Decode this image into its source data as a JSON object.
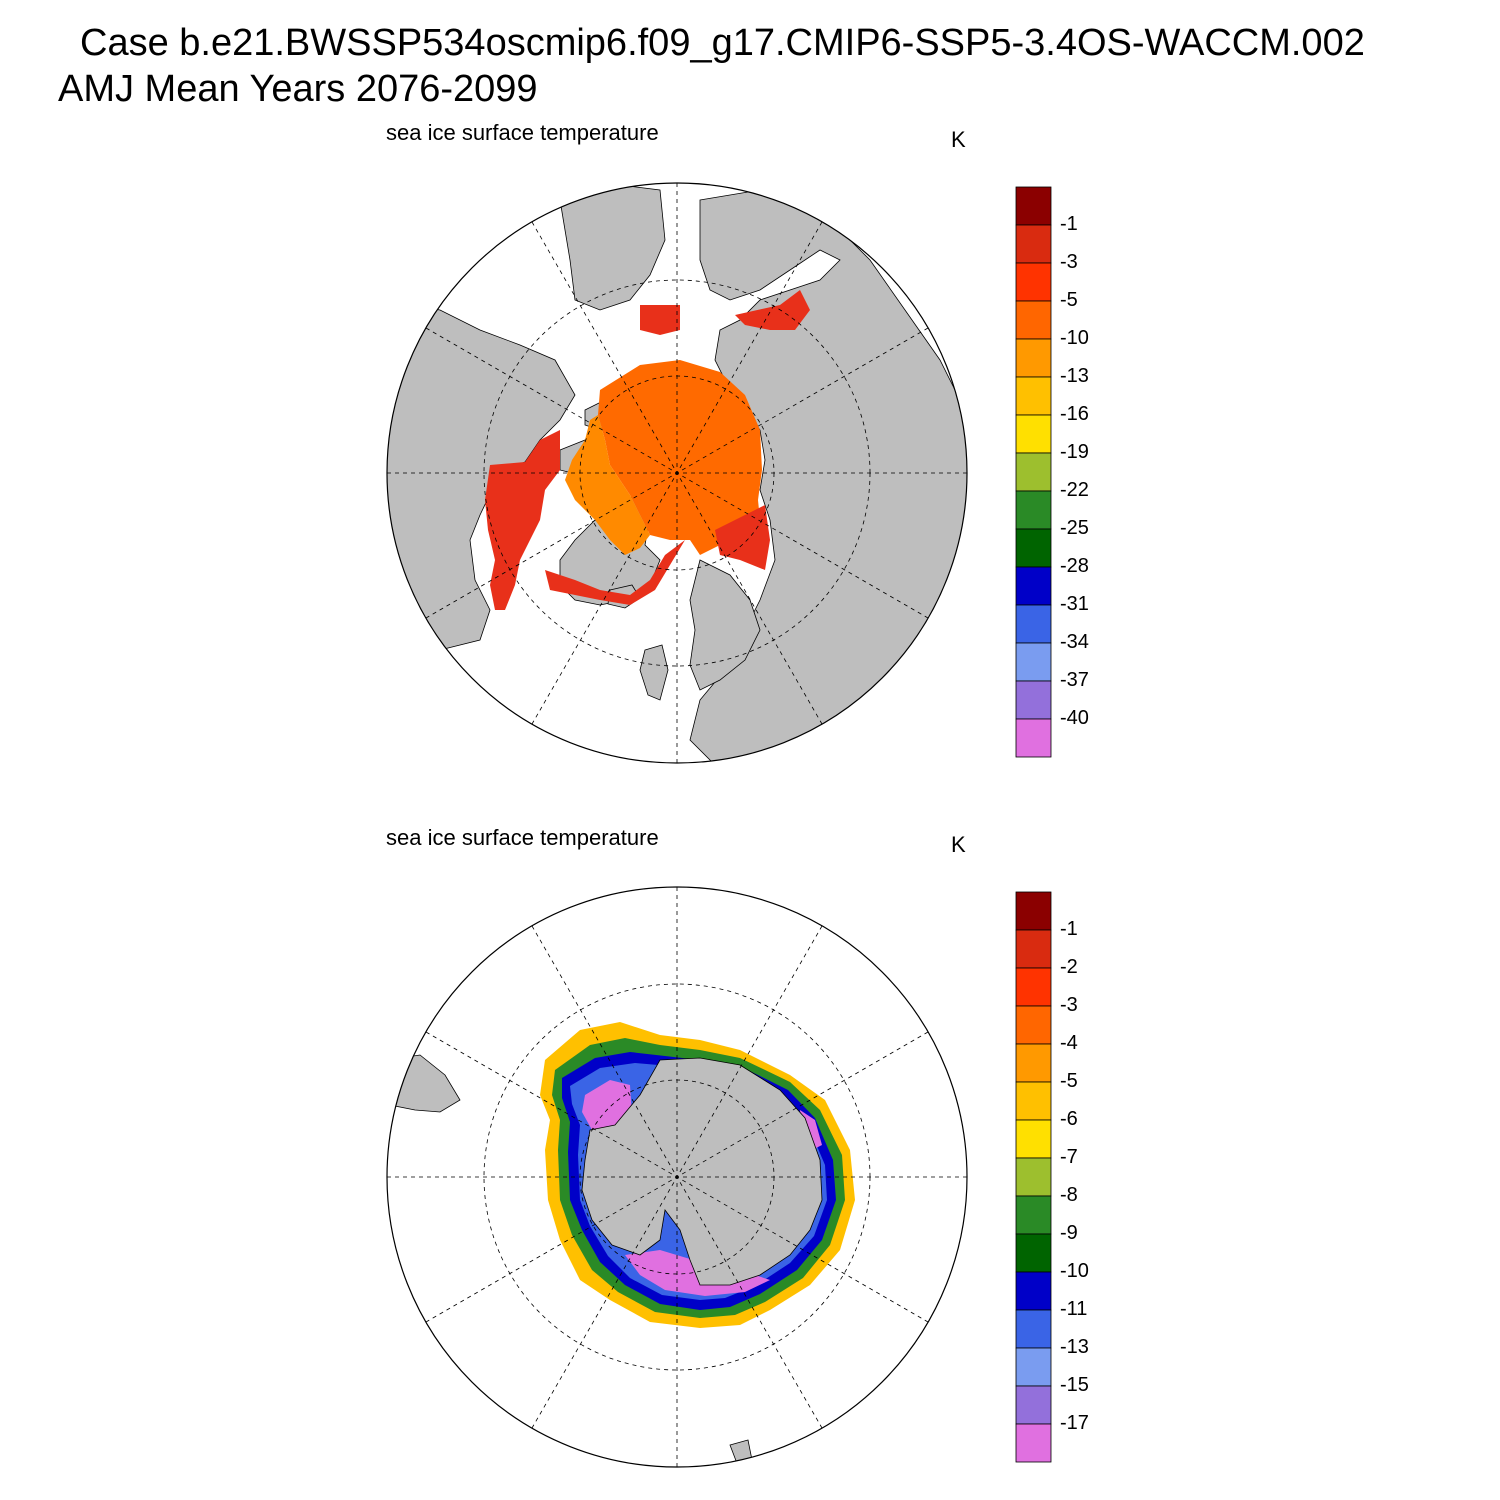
{
  "header": {
    "line1": "Case b.e21.BWSSP534oscmip6.f09_g17.CMIP6-SSP5-3.4OS-WACCM.002",
    "line2": "AMJ Mean   Years 2076-2099"
  },
  "panels": [
    {
      "id": "north",
      "title": "sea ice surface temperature",
      "units": "K",
      "hemisphere": "Northern",
      "colorbar": {
        "colors": [
          "#8b0000",
          "#d92b10",
          "#ff3300",
          "#ff6600",
          "#ff9900",
          "#ffc000",
          "#ffe000",
          "#9dbf2e",
          "#2a8a26",
          "#006400",
          "#0000c8",
          "#3a64e6",
          "#7a9cf0",
          "#9370db",
          "#e070e0"
        ],
        "labels": [
          "-1",
          "-3",
          "-5",
          "-10",
          "-13",
          "-16",
          "-19",
          "-22",
          "-25",
          "-28",
          "-31",
          "-34",
          "-37",
          "-40"
        ]
      }
    },
    {
      "id": "south",
      "title": "sea ice surface temperature",
      "units": "K",
      "hemisphere": "Southern",
      "colorbar": {
        "colors": [
          "#8b0000",
          "#d92b10",
          "#ff3300",
          "#ff6600",
          "#ff9900",
          "#ffc000",
          "#ffe000",
          "#9dbf2e",
          "#2a8a26",
          "#006400",
          "#0000c8",
          "#3a64e6",
          "#7a9cf0",
          "#9370db",
          "#e070e0"
        ],
        "labels": [
          "-1",
          "-2",
          "-3",
          "-4",
          "-5",
          "-6",
          "-7",
          "-8",
          "-9",
          "-10",
          "-11",
          "-13",
          "-15",
          "-17"
        ]
      }
    }
  ]
}
